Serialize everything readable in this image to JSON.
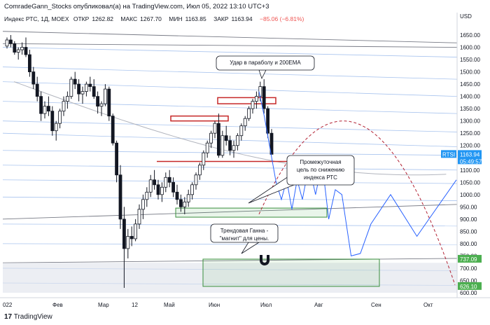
{
  "header": {
    "publisher_line": "ComradeGann_Stocks опубликовал(а) на TradingView.com, Июл 05, 2022 13:10 UTC+3",
    "symbol_line": "Индекс РТС, 1Д, MOEX",
    "ohlc": [
      {
        "label": "ОТКР",
        "value": "1262.82"
      },
      {
        "label": "МАКС",
        "value": "1267.70"
      },
      {
        "label": "МИН",
        "value": "1163.85"
      },
      {
        "label": "ЗАКР",
        "value": "1163.94"
      }
    ],
    "change": "−85.06 (−6.81%)"
  },
  "footer": {
    "logo_text": "TradingView"
  },
  "colors": {
    "up": "#26a69a",
    "down": "#ef5350",
    "candle_body": "#131722",
    "forecast": "#2962ff",
    "ema_arc": "#b22234",
    "support": "#c62828",
    "zone_green": "#388e3c",
    "zone_red": "#c62828",
    "price_tag": "#2196f3",
    "green_tag": "#4caf50"
  },
  "annotations": {
    "parabola_note": "Удар в параболу и 200EMA",
    "target_note": "Промежуточная цель по снижению индекса РТС",
    "target_note_lines": [
      "Промежуточная",
      "цель по снижению",
      "индекса РТС"
    ],
    "gann_note_lines": [
      "Трендовая Ганна -",
      "\"магнит\" для цены."
    ],
    "magnet_icon": "magnet-icon"
  },
  "price_labels": {
    "symbol": "RTSI",
    "last_price": "1163.94",
    "countdown": "05:49:57",
    "level_1": "737.09",
    "level_2": "626.10"
  },
  "chart_data": {
    "type": "candlestick",
    "title": "Индекс РТС, 1Д, MOEX",
    "currency": "USD",
    "y_ticks": [
      600,
      650,
      700,
      750,
      800,
      850,
      900,
      950,
      1000,
      1050,
      1100,
      1150,
      1200,
      1250,
      1300,
      1350,
      1400,
      1450,
      1500,
      1550,
      1600,
      1650
    ],
    "x_tick_labels": [
      "022",
      "Фев",
      "Мар",
      "12",
      "Май",
      "Июн",
      "Июл",
      "Авг",
      "Сен",
      "Окт"
    ],
    "ylim": [
      580,
      1690
    ],
    "ohlc_series": [
      [
        1605,
        1640,
        1595,
        1630
      ],
      [
        1630,
        1650,
        1600,
        1615
      ],
      [
        1615,
        1625,
        1570,
        1580
      ],
      [
        1580,
        1600,
        1550,
        1590
      ],
      [
        1590,
        1620,
        1570,
        1600
      ],
      [
        1600,
        1640,
        1560,
        1570
      ],
      [
        1570,
        1590,
        1480,
        1500
      ],
      [
        1500,
        1520,
        1430,
        1450
      ],
      [
        1450,
        1480,
        1380,
        1400
      ],
      [
        1400,
        1420,
        1300,
        1330
      ],
      [
        1330,
        1380,
        1310,
        1360
      ],
      [
        1360,
        1400,
        1320,
        1340
      ],
      [
        1340,
        1360,
        1240,
        1260
      ],
      [
        1260,
        1300,
        1220,
        1290
      ],
      [
        1290,
        1350,
        1270,
        1340
      ],
      [
        1340,
        1400,
        1320,
        1380
      ],
      [
        1380,
        1420,
        1350,
        1400
      ],
      [
        1400,
        1480,
        1390,
        1470
      ],
      [
        1470,
        1500,
        1430,
        1450
      ],
      [
        1450,
        1470,
        1380,
        1410
      ],
      [
        1410,
        1440,
        1370,
        1420
      ],
      [
        1420,
        1460,
        1400,
        1450
      ],
      [
        1450,
        1480,
        1420,
        1440
      ],
      [
        1440,
        1470,
        1390,
        1400
      ],
      [
        1400,
        1420,
        1330,
        1360
      ],
      [
        1360,
        1380,
        1320,
        1370
      ],
      [
        1370,
        1450,
        1360,
        1430
      ],
      [
        1430,
        1440,
        1300,
        1320
      ],
      [
        1320,
        1330,
        1200,
        1210
      ],
      [
        1210,
        1220,
        1050,
        1080
      ],
      [
        1080,
        1120,
        860,
        900
      ],
      [
        900,
        950,
        620,
        780
      ],
      [
        780,
        860,
        740,
        830
      ],
      [
        830,
        870,
        790,
        820
      ],
      [
        820,
        900,
        810,
        880
      ],
      [
        880,
        960,
        860,
        940
      ],
      [
        940,
        1000,
        900,
        980
      ],
      [
        980,
        1030,
        950,
        1010
      ],
      [
        1010,
        1080,
        990,
        1060
      ],
      [
        1060,
        1100,
        1020,
        1040
      ],
      [
        1040,
        1060,
        980,
        1000
      ],
      [
        1000,
        1050,
        970,
        1030
      ],
      [
        1030,
        1090,
        1010,
        1070
      ],
      [
        1070,
        1100,
        1030,
        1050
      ],
      [
        1050,
        1070,
        990,
        1010
      ],
      [
        1010,
        1040,
        960,
        980
      ],
      [
        980,
        1000,
        930,
        950
      ],
      [
        950,
        990,
        920,
        970
      ],
      [
        970,
        1020,
        950,
        1000
      ],
      [
        1000,
        1050,
        980,
        1040
      ],
      [
        1040,
        1090,
        1020,
        1080
      ],
      [
        1080,
        1130,
        1060,
        1120
      ],
      [
        1120,
        1180,
        1100,
        1170
      ],
      [
        1170,
        1220,
        1150,
        1210
      ],
      [
        1210,
        1260,
        1190,
        1250
      ],
      [
        1250,
        1300,
        1230,
        1290
      ],
      [
        1290,
        1330,
        1150,
        1160
      ],
      [
        1160,
        1260,
        1150,
        1240
      ],
      [
        1240,
        1280,
        1200,
        1220
      ],
      [
        1220,
        1240,
        1160,
        1180
      ],
      [
        1180,
        1220,
        1150,
        1200
      ],
      [
        1200,
        1250,
        1180,
        1240
      ],
      [
        1240,
        1290,
        1220,
        1280
      ],
      [
        1280,
        1320,
        1260,
        1310
      ],
      [
        1310,
        1360,
        1300,
        1350
      ],
      [
        1350,
        1390,
        1330,
        1380
      ],
      [
        1380,
        1420,
        1350,
        1400
      ],
      [
        1400,
        1460,
        1380,
        1440
      ],
      [
        1440,
        1470,
        1330,
        1350
      ],
      [
        1350,
        1360,
        1230,
        1250
      ],
      [
        1250,
        1267,
        1164,
        1164
      ]
    ],
    "forecast_path": [
      [
        1360,
        1420
      ],
      [
        1368,
        1320
      ],
      [
        1376,
        1200
      ],
      [
        1386,
        1050
      ],
      [
        1394,
        980
      ],
      [
        1402,
        1060
      ],
      [
        1410,
        940
      ],
      [
        1418,
        1060
      ],
      [
        1426,
        980
      ],
      [
        1436,
        1120
      ],
      [
        1446,
        1000
      ],
      [
        1456,
        1130
      ],
      [
        1466,
        900
      ],
      [
        1476,
        1020
      ],
      [
        1486,
        1000
      ],
      [
        1500,
        750
      ],
      [
        1514,
        760
      ],
      [
        1530,
        880
      ],
      [
        1560,
        1000
      ],
      [
        1600,
        830
      ],
      [
        1660,
        1060
      ]
    ],
    "ema200_arc": "parabola",
    "zones": [
      {
        "color": "zone_red",
        "price_range": [
          1300,
          1320
        ]
      },
      {
        "color": "zone_red",
        "price_range": [
          1370,
          1395
        ]
      },
      {
        "color": "zone_green",
        "price_range": [
          905,
          940
        ]
      },
      {
        "color": "zone_green",
        "price_range": [
          626,
          737
        ]
      }
    ],
    "support_line_price": 1135,
    "grid": true
  }
}
